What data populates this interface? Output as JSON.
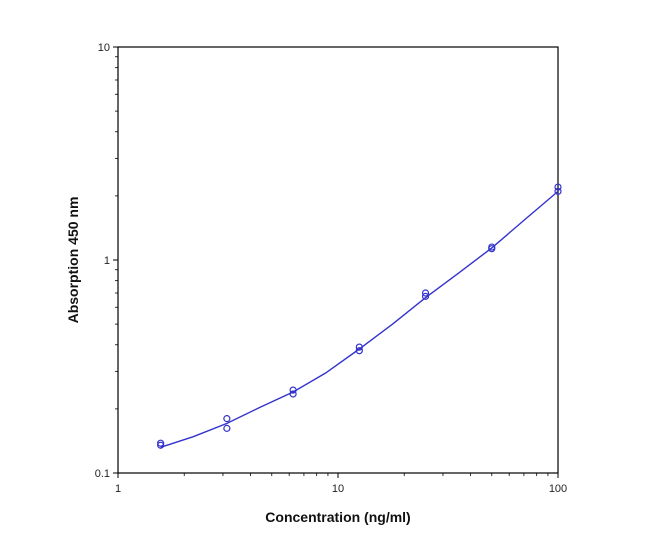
{
  "chart_data": {
    "type": "scatter",
    "xlabel": "Concentration (ng/ml)",
    "ylabel": "Absorption 450 nm",
    "x_scale": "log",
    "y_scale": "log",
    "xlim": [
      1,
      100
    ],
    "ylim": [
      0.1,
      10
    ],
    "x_ticks": [
      {
        "value": 1,
        "label": "1"
      },
      {
        "value": 10,
        "label": "10"
      },
      {
        "value": 100,
        "label": "100"
      }
    ],
    "y_ticks": [
      {
        "value": 0.1,
        "label": "0.1"
      },
      {
        "value": 1,
        "label": "1"
      },
      {
        "value": 10,
        "label": "10"
      }
    ],
    "grid": false,
    "colors": {
      "series": "#3333cc",
      "axis": "#000000"
    },
    "series": [
      {
        "marker": "circle-open",
        "points": [
          {
            "x": 1.5625,
            "y": 0.135
          },
          {
            "x": 1.5625,
            "y": 0.138
          },
          {
            "x": 3.125,
            "y": 0.18
          },
          {
            "x": 3.125,
            "y": 0.162
          },
          {
            "x": 6.25,
            "y": 0.245
          },
          {
            "x": 6.25,
            "y": 0.235
          },
          {
            "x": 12.5,
            "y": 0.39
          },
          {
            "x": 12.5,
            "y": 0.375
          },
          {
            "x": 25,
            "y": 0.7
          },
          {
            "x": 25,
            "y": 0.675
          },
          {
            "x": 50,
            "y": 1.15
          },
          {
            "x": 50,
            "y": 1.13
          },
          {
            "x": 100,
            "y": 2.2
          },
          {
            "x": 100,
            "y": 2.1
          }
        ]
      }
    ],
    "fit_curve": {
      "points": [
        {
          "x": 1.5625,
          "y": 0.132
        },
        {
          "x": 2.2,
          "y": 0.148
        },
        {
          "x": 3.125,
          "y": 0.171
        },
        {
          "x": 4.4,
          "y": 0.203
        },
        {
          "x": 6.25,
          "y": 0.24
        },
        {
          "x": 8.8,
          "y": 0.295
        },
        {
          "x": 12.5,
          "y": 0.382
        },
        {
          "x": 17.7,
          "y": 0.5
        },
        {
          "x": 25,
          "y": 0.665
        },
        {
          "x": 35.4,
          "y": 0.87
        },
        {
          "x": 50,
          "y": 1.14
        },
        {
          "x": 70.7,
          "y": 1.55
        },
        {
          "x": 100,
          "y": 2.1
        }
      ]
    }
  }
}
